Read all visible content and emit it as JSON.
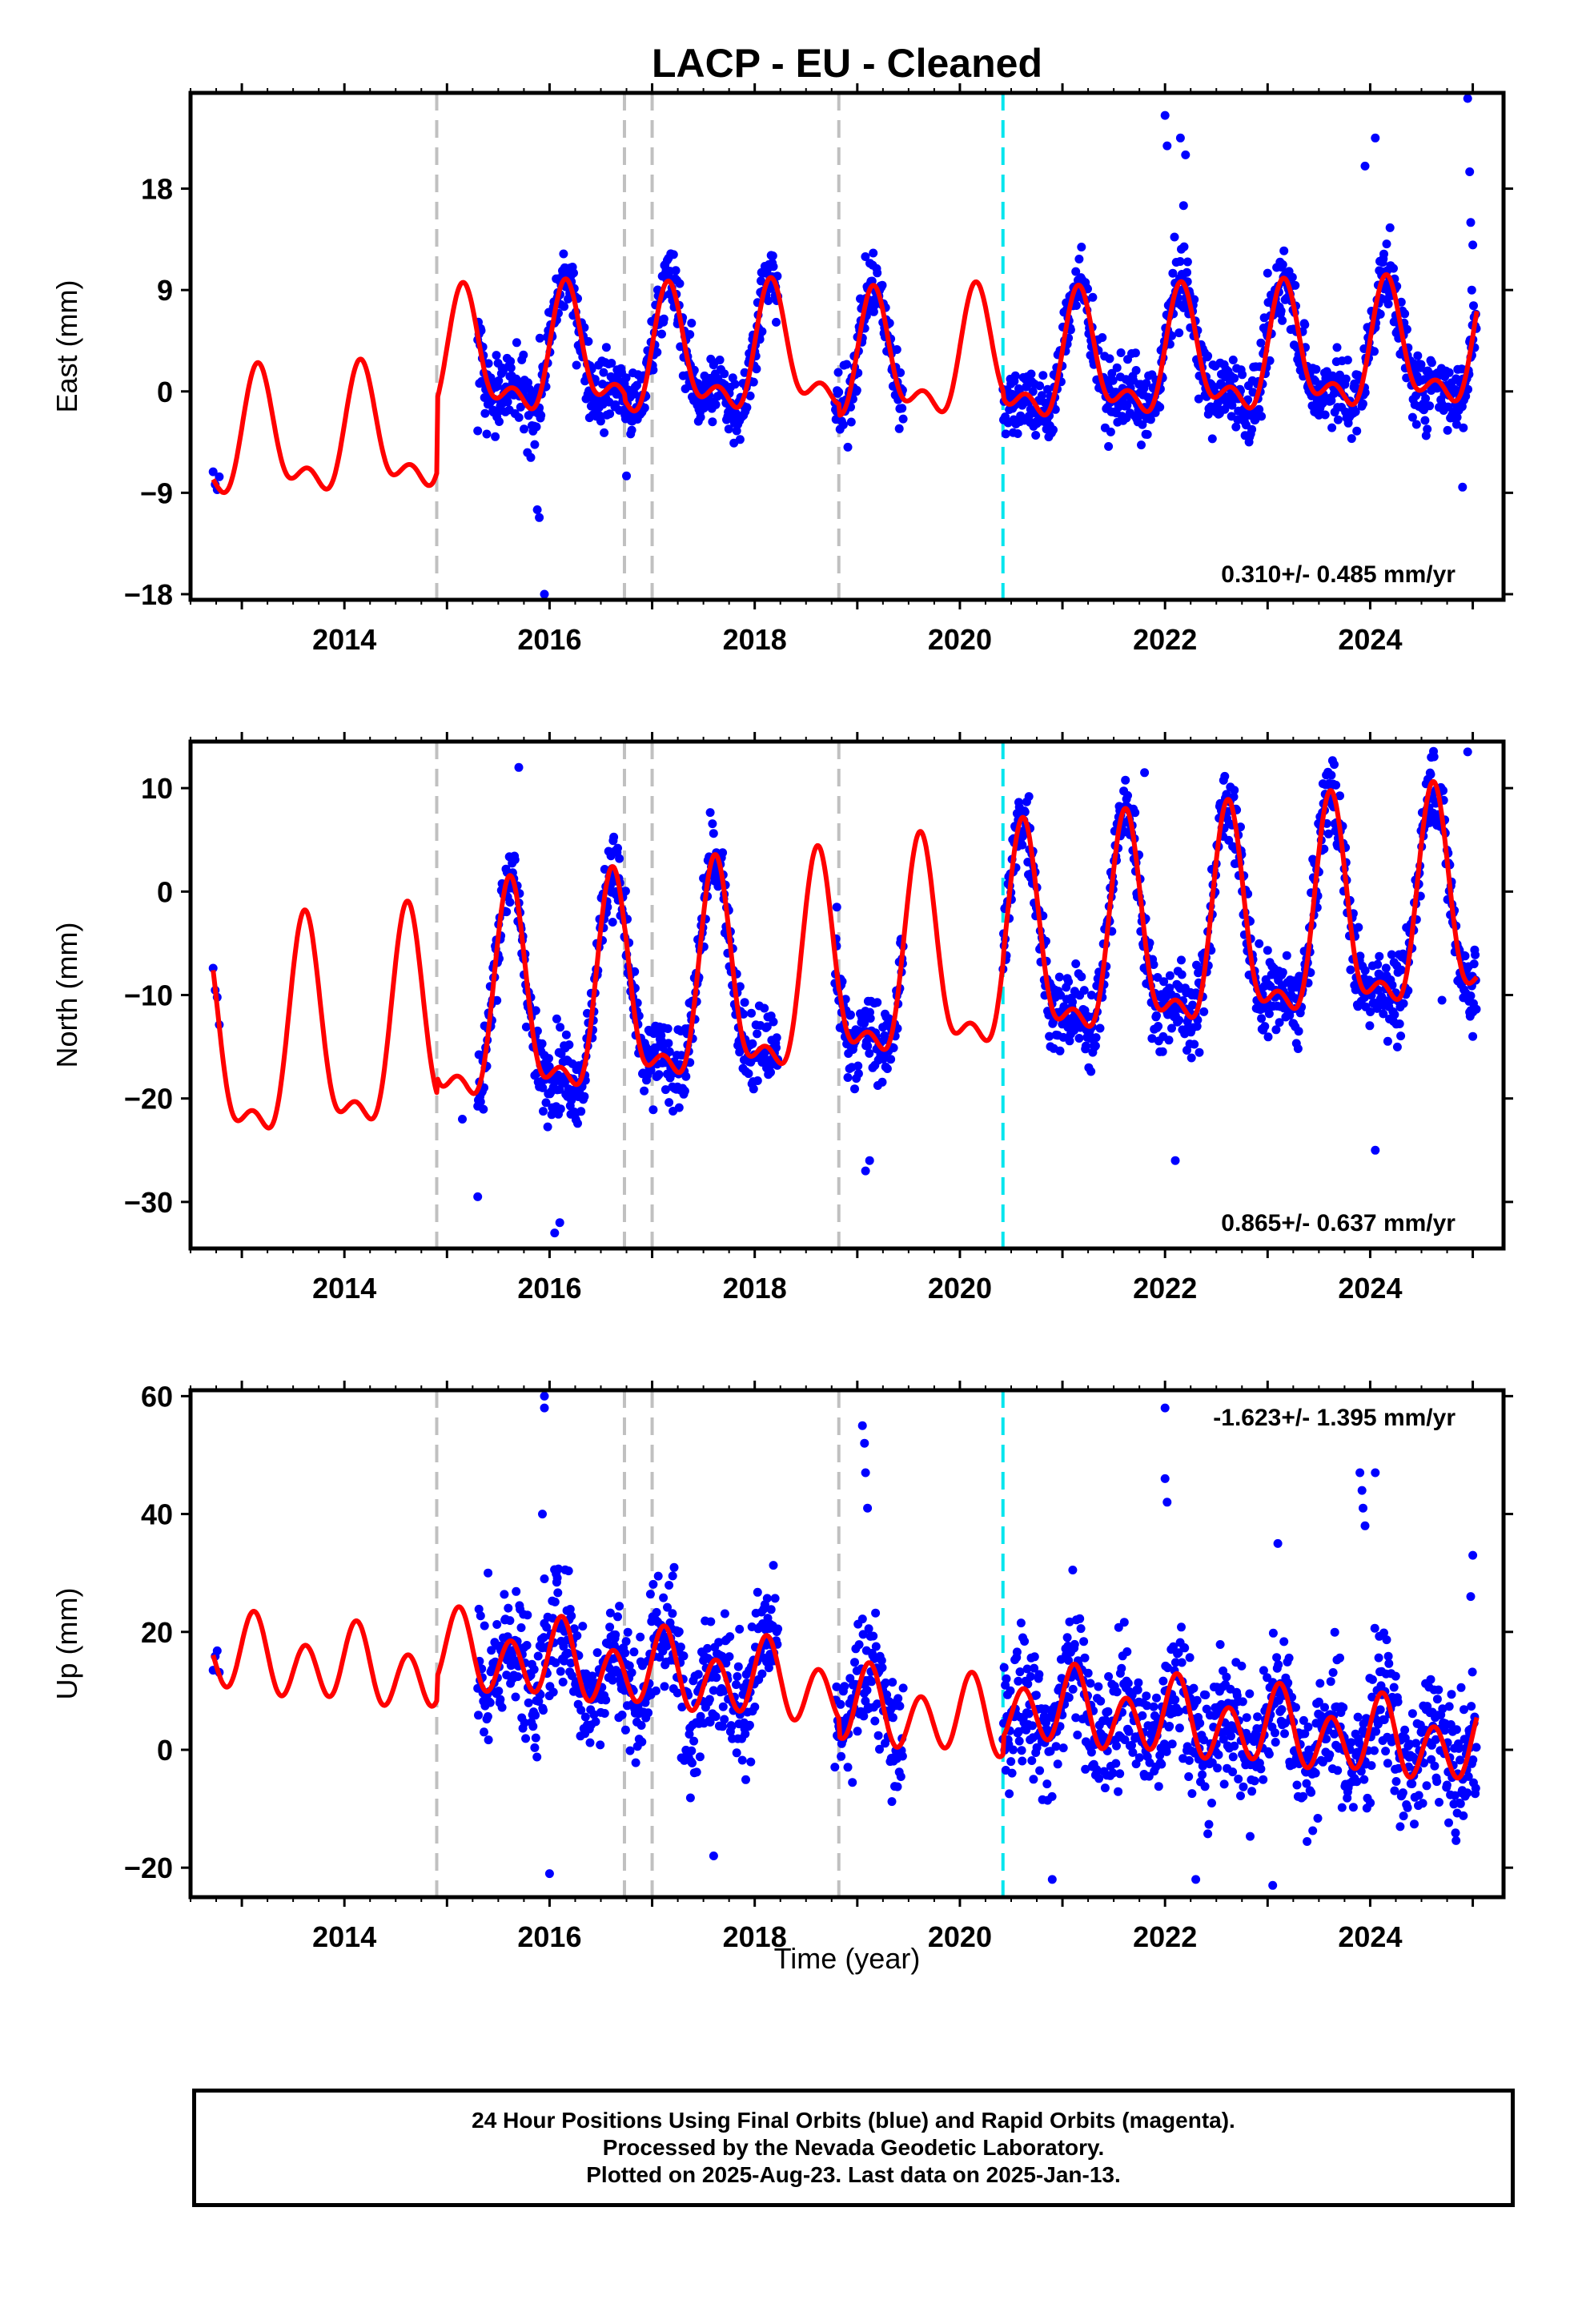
{
  "title": "LACP  - EU - Cleaned",
  "x_axis_label": "Time (year)",
  "colors": {
    "observations": "#0000ff",
    "model": "#ff0000",
    "equipment_change": "#c0c0c0",
    "other_event": "#00e5ee",
    "frame": "#000000"
  },
  "footer": {
    "line1": "24 Hour Positions Using Final Orbits (blue) and Rapid Orbits (magenta).",
    "line2": "Processed by the Nevada Geodetic Laboratory.",
    "line3": "Plotted on 2025-Aug-23. Last data on 2025-Jan-13."
  },
  "chart_data": [
    {
      "type": "scatter",
      "component": "east",
      "ylabel": "East (mm)",
      "rate_label": "0.310+/- 0.485 mm/yr",
      "rate_position": "bottom-right",
      "xlim": [
        2012.5,
        2025.3
      ],
      "ylim": [
        -18.5,
        26.5
      ],
      "x_ticks": [
        2014,
        2016,
        2018,
        2020,
        2022,
        2024
      ],
      "y_ticks": [
        -18,
        -9,
        0,
        9,
        18
      ],
      "vertical_lines": {
        "gray": [
          2014.9,
          2016.73,
          2017.0,
          2018.82
        ],
        "cyan": [
          2020.42
        ]
      },
      "model": {
        "offset": -2.9,
        "trend": 0.31,
        "annual_amp": 4.8,
        "annual_phase_year": 0.17,
        "semiannual_amp": 2.5,
        "semiannual_phase_year": 0.15,
        "steps": [
          [
            2014.9,
            6.5
          ],
          [
            2016.73,
            -0.5
          ],
          [
            2018.82,
            -1.0
          ],
          [
            2020.42,
            -0.6
          ]
        ]
      },
      "observations": {
        "start": 2015.3,
        "end": 2025.04,
        "gaps": [
          [
            2018.23,
            2018.78
          ],
          [
            2019.45,
            2020.42
          ]
        ],
        "scatter_mm": 1.6,
        "outliers": [
          [
            2015.95,
            -18.0
          ],
          [
            2015.9,
            -11.2
          ],
          [
            2015.88,
            -10.5
          ],
          [
            2016.75,
            -7.5
          ],
          [
            2022.0,
            24.5
          ],
          [
            2022.02,
            21.8
          ],
          [
            2022.15,
            22.5
          ],
          [
            2022.2,
            21.0
          ],
          [
            2022.18,
            16.5
          ],
          [
            2022.22,
            11.5
          ],
          [
            2023.95,
            20.0
          ],
          [
            2024.05,
            22.5
          ],
          [
            2024.9,
            -8.5
          ],
          [
            2024.95,
            26.0
          ],
          [
            2024.97,
            19.5
          ],
          [
            2024.98,
            15.0
          ],
          [
            2025.0,
            13.0
          ],
          [
            2024.99,
            9.0
          ],
          [
            2015.3,
            -3.5
          ],
          [
            2023.0,
            10.5
          ]
        ]
      }
    },
    {
      "type": "scatter",
      "component": "north",
      "ylabel": "North (mm)",
      "rate_label": "0.865+/- 0.637 mm/yr",
      "rate_position": "bottom-right",
      "xlim": [
        2012.5,
        2025.3
      ],
      "ylim": [
        -34.5,
        14.5
      ],
      "x_ticks": [
        2014,
        2016,
        2018,
        2020,
        2022,
        2024
      ],
      "y_ticks": [
        -30,
        -20,
        -10,
        0,
        10
      ],
      "vertical_lines": {
        "gray": [
          2014.9,
          2016.73,
          2017.0,
          2018.82
        ],
        "cyan": [
          2020.42
        ]
      },
      "model": {
        "offset": -10.6,
        "trend": 0.865,
        "annual_amp": 9.5,
        "annual_phase_year": 0.62,
        "semiannual_amp": 4.0,
        "semiannual_phase_year": 0.11,
        "steps": [
          [
            2014.9,
            1.6
          ],
          [
            2016.73,
            0.3
          ],
          [
            2018.82,
            0.5
          ],
          [
            2020.42,
            0.5
          ]
        ]
      },
      "observations": {
        "start": 2015.3,
        "end": 2025.04,
        "gaps": [
          [
            2018.23,
            2018.78
          ],
          [
            2019.45,
            2020.42
          ]
        ],
        "scatter_mm": 1.9,
        "outliers": [
          [
            2015.7,
            12.0
          ],
          [
            2015.3,
            -29.5
          ],
          [
            2016.05,
            -33.0
          ],
          [
            2016.1,
            -32.0
          ],
          [
            2019.08,
            -27.0
          ],
          [
            2019.12,
            -26.0
          ],
          [
            2022.1,
            -26.0
          ],
          [
            2024.05,
            -25.0
          ],
          [
            2021.8,
            11.5
          ],
          [
            2024.95,
            13.5
          ],
          [
            2025.0,
            -14.0
          ],
          [
            2024.98,
            -11.5
          ],
          [
            2024.7,
            -10.5
          ],
          [
            2018.8,
            -1.5
          ],
          [
            2015.15,
            -22.0
          ]
        ]
      }
    },
    {
      "type": "scatter",
      "component": "up",
      "ylabel": "Up (mm)",
      "rate_label": "-1.623+/- 1.395 mm/yr",
      "rate_position": "top-right",
      "xlim": [
        2012.5,
        2025.3
      ],
      "ylim": [
        -25.0,
        61.0
      ],
      "x_ticks": [
        2014,
        2016,
        2018,
        2020,
        2022,
        2024
      ],
      "y_ticks": [
        -20,
        0,
        20,
        40,
        60
      ],
      "vertical_lines": {
        "gray": [
          2014.9,
          2016.73,
          2017.0,
          2018.82
        ],
        "cyan": [
          2020.42
        ]
      },
      "model": {
        "offset": 6.0,
        "trend": -1.62,
        "annual_amp": 2.5,
        "annual_phase_year": 0.1,
        "semiannual_amp": 5.5,
        "semiannual_phase_year": 0.12,
        "steps": [
          [
            2014.9,
            4.0
          ],
          [
            2016.73,
            0.0
          ],
          [
            2018.82,
            -3.0
          ],
          [
            2020.42,
            3.0
          ]
        ]
      },
      "observations": {
        "start": 2015.3,
        "end": 2025.04,
        "gaps": [
          [
            2018.23,
            2018.78
          ],
          [
            2019.45,
            2020.42
          ]
        ],
        "scatter_mm": 5.5,
        "outliers": [
          [
            2015.95,
            60.0
          ],
          [
            2015.95,
            58.0
          ],
          [
            2015.93,
            40.0
          ],
          [
            2019.05,
            55.0
          ],
          [
            2019.07,
            52.0
          ],
          [
            2019.08,
            47.0
          ],
          [
            2019.1,
            41.0
          ],
          [
            2022.0,
            58.0
          ],
          [
            2022.0,
            46.0
          ],
          [
            2022.02,
            42.0
          ],
          [
            2023.9,
            47.0
          ],
          [
            2023.92,
            44.0
          ],
          [
            2023.93,
            41.0
          ],
          [
            2024.05,
            47.0
          ],
          [
            2023.95,
            38.0
          ],
          [
            2025.0,
            33.0
          ],
          [
            2024.98,
            26.0
          ],
          [
            2023.1,
            35.0
          ],
          [
            2015.4,
            30.0
          ],
          [
            2020.9,
            -22.0
          ],
          [
            2022.3,
            -22.0
          ],
          [
            2023.05,
            -23.0
          ],
          [
            2016.0,
            -21.0
          ],
          [
            2021.1,
            30.5
          ],
          [
            2017.2,
            29.5
          ],
          [
            2017.6,
            -18.0
          ],
          [
            2015.95,
            29.0
          ]
        ]
      }
    }
  ]
}
